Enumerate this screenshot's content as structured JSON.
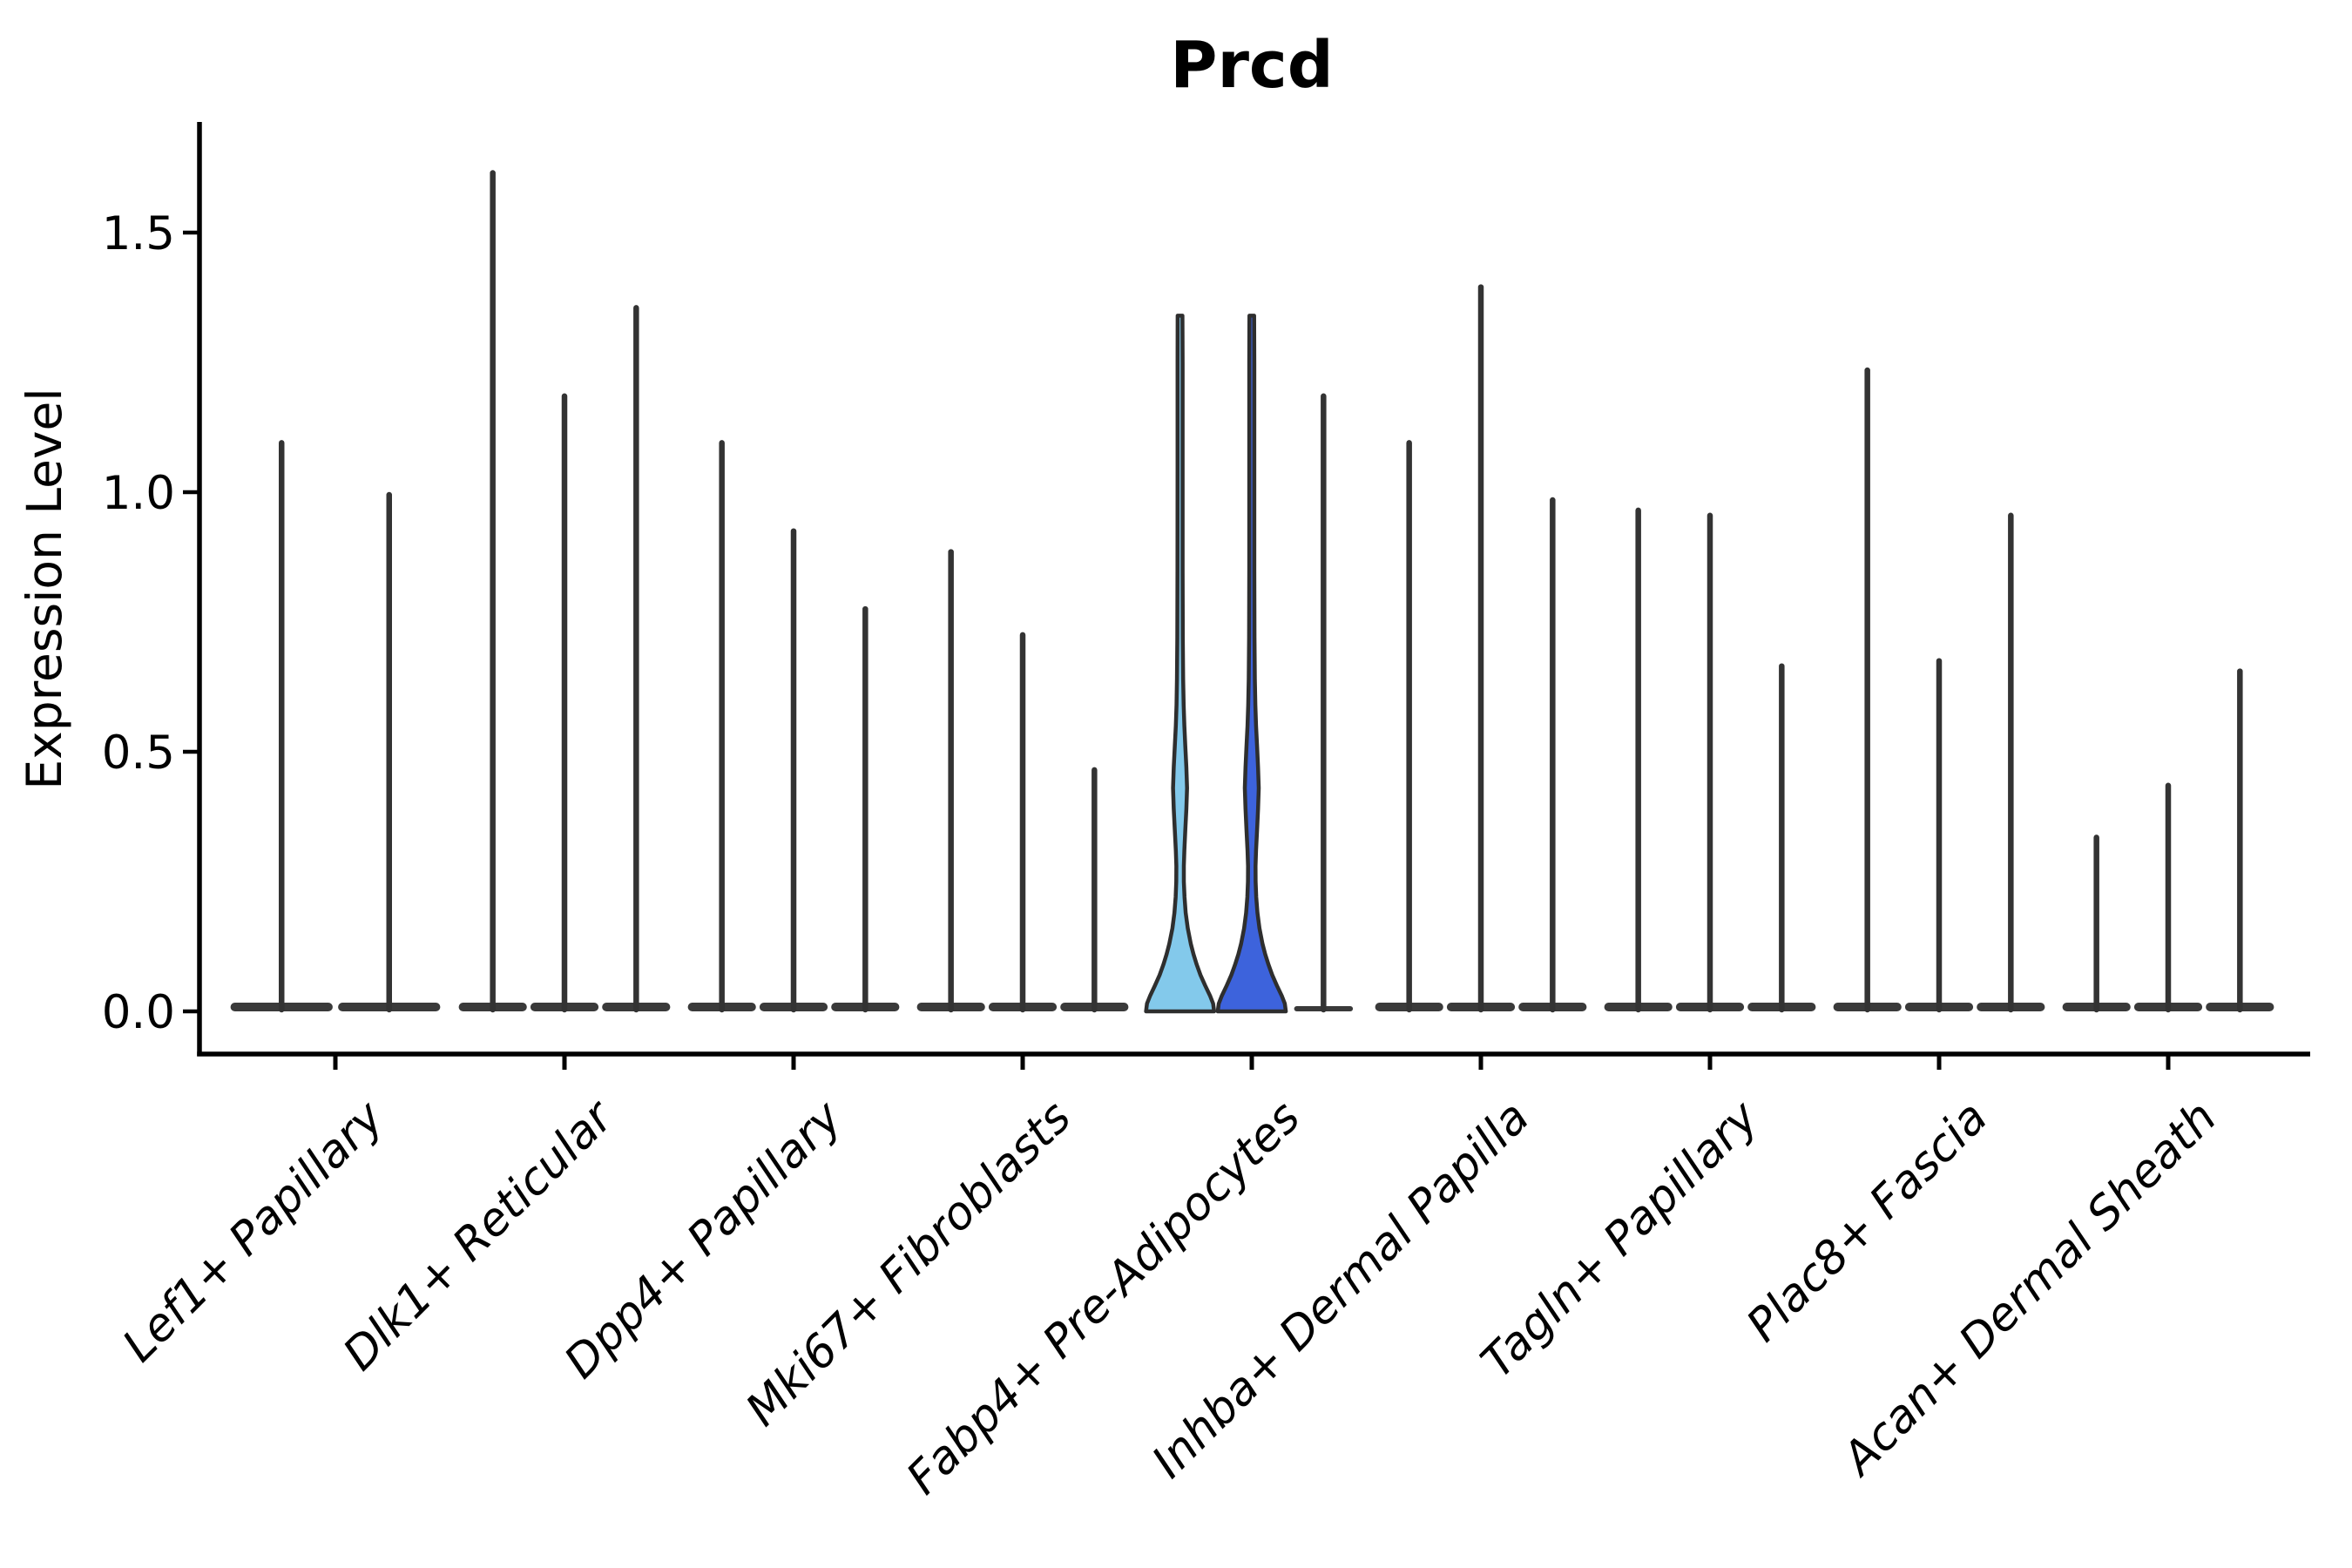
{
  "figure": {
    "title": "Prcd",
    "background": "#ffffff"
  },
  "chart_data": {
    "type": "violin",
    "title": "Prcd",
    "xlabel": "",
    "ylabel": "Expression Level",
    "ylim": [
      -0.084,
      1.715
    ],
    "yticks": [
      0,
      0.5,
      1,
      1.5
    ],
    "ytick_labels": [
      "0.0",
      "0.5",
      "1.0",
      "1.5"
    ],
    "grid": false,
    "legend_position": "none",
    "categories": [
      "Lef1+ Papillary",
      "Dlk1+ Reticular",
      "Dpp4+ Papillary",
      "Mki67+ Fibroblasts",
      "Fabp4+ Pre-Adipocytes",
      "Inhba+ Dermal Papilla",
      "Tagln+ Papillary",
      "Plac8+ Fascia",
      "Acan+ Dermal Sheath"
    ],
    "groups": [
      {
        "category": "Lef1+ Papillary",
        "violins": [
          {
            "max": 1.1
          },
          {
            "max": 1.0
          }
        ]
      },
      {
        "category": "Dlk1+ Reticular",
        "violins": [
          {
            "max": 1.62
          },
          {
            "max": 1.19
          },
          {
            "max": 1.36
          }
        ]
      },
      {
        "category": "Dpp4+ Papillary",
        "violins": [
          {
            "max": 1.1
          },
          {
            "max": 0.93
          },
          {
            "max": 0.78
          }
        ]
      },
      {
        "category": "Mki67+ Fibroblasts",
        "violins": [
          {
            "max": 0.89
          },
          {
            "max": 0.73
          },
          {
            "max": 0.47
          }
        ]
      },
      {
        "category": "Fabp4+ Pre-Adipocytes",
        "violins": [
          {
            "max": 1.34,
            "fill": "#83C9EB",
            "shape": "density"
          },
          {
            "max": 1.34,
            "fill": "#3D63DC",
            "shape": "density"
          },
          {
            "max": 1.19,
            "base": "thin"
          }
        ]
      },
      {
        "category": "Inhba+ Dermal Papilla",
        "violins": [
          {
            "max": 1.1
          },
          {
            "max": 1.4
          },
          {
            "max": 0.99
          }
        ]
      },
      {
        "category": "Tagln+ Papillary",
        "violins": [
          {
            "max": 0.97
          },
          {
            "max": 0.96
          },
          {
            "max": 0.67
          }
        ]
      },
      {
        "category": "Plac8+ Fascia",
        "violins": [
          {
            "max": 1.24
          },
          {
            "max": 0.68
          },
          {
            "max": 0.96
          }
        ]
      },
      {
        "category": "Acan+ Dermal Sheath",
        "violins": [
          {
            "max": 0.34
          },
          {
            "max": 0.44
          },
          {
            "max": 0.66
          }
        ]
      }
    ],
    "density_profile": [
      [
        0.0,
        1.0
      ],
      [
        0.015,
        0.97
      ],
      [
        0.03,
        0.88
      ],
      [
        0.05,
        0.735
      ],
      [
        0.07,
        0.6
      ],
      [
        0.09,
        0.49
      ],
      [
        0.11,
        0.395
      ],
      [
        0.13,
        0.315
      ],
      [
        0.16,
        0.225
      ],
      [
        0.19,
        0.165
      ],
      [
        0.22,
        0.13
      ],
      [
        0.25,
        0.112
      ],
      [
        0.28,
        0.11
      ],
      [
        0.31,
        0.125
      ],
      [
        0.35,
        0.155
      ],
      [
        0.39,
        0.185
      ],
      [
        0.43,
        0.205
      ],
      [
        0.47,
        0.185
      ],
      [
        0.51,
        0.155
      ],
      [
        0.55,
        0.125
      ],
      [
        0.59,
        0.105
      ],
      [
        0.64,
        0.09
      ],
      [
        0.72,
        0.08
      ],
      [
        0.85,
        0.075
      ],
      [
        1.05,
        0.074
      ],
      [
        1.25,
        0.074
      ],
      [
        1.34,
        0.07
      ]
    ],
    "style": {
      "spike_color": "#333333",
      "base_color": "#3a3a3a",
      "violin_outline_color": "#2E2E2E",
      "axis_color": "#000000",
      "text_color": "#000000",
      "highlight_fills": [
        "#83C9EB",
        "#3D63DC"
      ]
    }
  }
}
